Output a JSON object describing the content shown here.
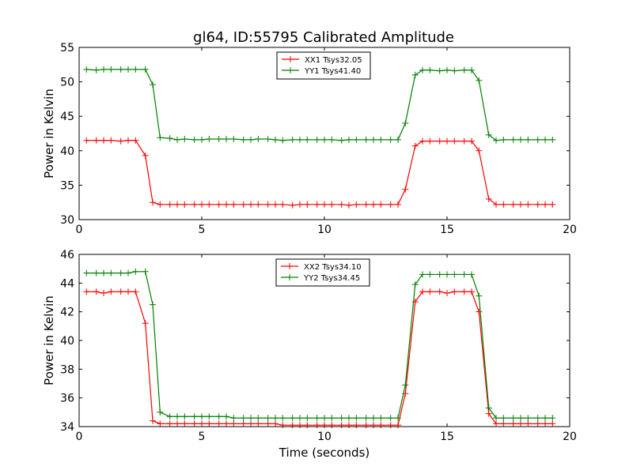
{
  "figure_title": "gl64, ID:55795 Calibrated Amplitude",
  "colors": {
    "xx": "#ff0000",
    "yy": "#008000"
  },
  "chart_data": [
    {
      "type": "line",
      "title": "gl64, ID:55795 Calibrated Amplitude",
      "xlabel": "",
      "ylabel": "Power in Kelvin",
      "xlim": [
        0,
        20
      ],
      "ylim": [
        30,
        55
      ],
      "xticks": [
        0,
        5,
        10,
        15,
        20
      ],
      "yticks": [
        30,
        35,
        40,
        45,
        50,
        55
      ],
      "grid": false,
      "legend_position": "upper center",
      "x": [
        0.3,
        0.7,
        1.0,
        1.3,
        1.7,
        2.0,
        2.3,
        2.7,
        3.0,
        3.3,
        3.7,
        4.0,
        4.3,
        4.7,
        5.0,
        5.3,
        5.7,
        6.0,
        6.3,
        6.7,
        7.0,
        7.3,
        7.7,
        8.0,
        8.3,
        8.7,
        9.0,
        9.3,
        9.7,
        10.0,
        10.3,
        10.7,
        11.0,
        11.3,
        11.7,
        12.0,
        12.3,
        12.7,
        13.0,
        13.3,
        13.7,
        14.0,
        14.3,
        14.7,
        15.0,
        15.3,
        15.7,
        16.0,
        16.3,
        16.7,
        17.0,
        17.3,
        17.7,
        18.0,
        18.3,
        18.7,
        19.0,
        19.3
      ],
      "series": [
        {
          "name": "XX1 Tsys32.05",
          "color": "#ff0000",
          "values": [
            41.5,
            41.5,
            41.5,
            41.5,
            41.4,
            41.5,
            41.5,
            39.3,
            32.5,
            32.2,
            32.2,
            32.2,
            32.2,
            32.2,
            32.2,
            32.2,
            32.2,
            32.2,
            32.2,
            32.2,
            32.2,
            32.2,
            32.2,
            32.2,
            32.2,
            32.1,
            32.2,
            32.2,
            32.2,
            32.2,
            32.2,
            32.2,
            32.1,
            32.2,
            32.2,
            32.2,
            32.2,
            32.2,
            32.2,
            34.4,
            40.7,
            41.4,
            41.4,
            41.4,
            41.4,
            41.4,
            41.4,
            41.4,
            40.0,
            33.0,
            32.2,
            32.2,
            32.2,
            32.2,
            32.2,
            32.2,
            32.2,
            32.2
          ]
        },
        {
          "name": "YY1 Tsys41.40",
          "color": "#008000",
          "values": [
            51.8,
            51.7,
            51.8,
            51.8,
            51.8,
            51.8,
            51.8,
            51.8,
            49.6,
            41.9,
            41.8,
            41.6,
            41.7,
            41.6,
            41.6,
            41.7,
            41.7,
            41.7,
            41.7,
            41.6,
            41.6,
            41.7,
            41.7,
            41.6,
            41.5,
            41.6,
            41.6,
            41.6,
            41.6,
            41.6,
            41.6,
            41.5,
            41.6,
            41.6,
            41.6,
            41.6,
            41.6,
            41.6,
            41.6,
            44.0,
            51.0,
            51.7,
            51.7,
            51.6,
            51.7,
            51.6,
            51.7,
            51.7,
            50.2,
            42.3,
            41.5,
            41.6,
            41.6,
            41.6,
            41.6,
            41.6,
            41.6,
            41.6
          ]
        }
      ]
    },
    {
      "type": "line",
      "title": "",
      "xlabel": "Time (seconds)",
      "ylabel": "Power in Kelvin",
      "xlim": [
        0,
        20
      ],
      "ylim": [
        34,
        46
      ],
      "xticks": [
        0,
        5,
        10,
        15,
        20
      ],
      "yticks": [
        34,
        36,
        38,
        40,
        42,
        44,
        46
      ],
      "grid": false,
      "legend_position": "upper center",
      "x": [
        0.3,
        0.7,
        1.0,
        1.3,
        1.7,
        2.0,
        2.3,
        2.7,
        3.0,
        3.3,
        3.7,
        4.0,
        4.3,
        4.7,
        5.0,
        5.3,
        5.7,
        6.0,
        6.3,
        6.7,
        7.0,
        7.3,
        7.7,
        8.0,
        8.3,
        8.7,
        9.0,
        9.3,
        9.7,
        10.0,
        10.3,
        10.7,
        11.0,
        11.3,
        11.7,
        12.0,
        12.3,
        12.7,
        13.0,
        13.3,
        13.7,
        14.0,
        14.3,
        14.7,
        15.0,
        15.3,
        15.7,
        16.0,
        16.3,
        16.7,
        17.0,
        17.3,
        17.7,
        18.0,
        18.3,
        18.7,
        19.0,
        19.3
      ],
      "series": [
        {
          "name": "XX2 Tsys34.10",
          "color": "#ff0000",
          "values": [
            43.4,
            43.4,
            43.3,
            43.4,
            43.4,
            43.4,
            43.4,
            41.2,
            34.4,
            34.2,
            34.2,
            34.2,
            34.2,
            34.2,
            34.2,
            34.2,
            34.2,
            34.2,
            34.2,
            34.2,
            34.2,
            34.2,
            34.2,
            34.2,
            34.1,
            34.1,
            34.1,
            34.1,
            34.1,
            34.1,
            34.1,
            34.1,
            34.1,
            34.1,
            34.1,
            34.1,
            34.1,
            34.1,
            34.1,
            36.3,
            42.7,
            43.4,
            43.4,
            43.4,
            43.3,
            43.4,
            43.4,
            43.4,
            42.0,
            34.9,
            34.2,
            34.2,
            34.2,
            34.2,
            34.2,
            34.2,
            34.2,
            34.2
          ]
        },
        {
          "name": "YY2 Tsys34.45",
          "color": "#008000",
          "values": [
            44.7,
            44.7,
            44.7,
            44.7,
            44.7,
            44.7,
            44.8,
            44.8,
            42.5,
            35.0,
            34.7,
            34.7,
            34.7,
            34.7,
            34.7,
            34.7,
            34.7,
            34.7,
            34.6,
            34.6,
            34.6,
            34.6,
            34.6,
            34.6,
            34.6,
            34.6,
            34.6,
            34.6,
            34.6,
            34.6,
            34.6,
            34.6,
            34.6,
            34.6,
            34.6,
            34.6,
            34.6,
            34.6,
            34.6,
            36.9,
            43.9,
            44.6,
            44.6,
            44.6,
            44.6,
            44.6,
            44.6,
            44.6,
            43.1,
            35.3,
            34.6,
            34.6,
            34.6,
            34.6,
            34.6,
            34.6,
            34.6,
            34.6
          ]
        }
      ]
    }
  ]
}
